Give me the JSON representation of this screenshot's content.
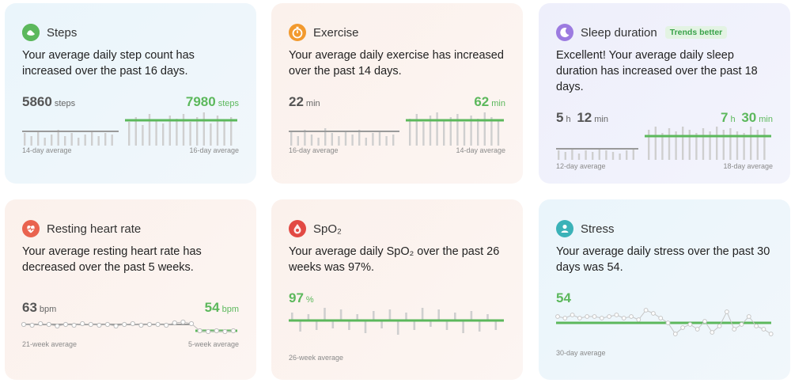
{
  "colors": {
    "green": "#5cb85c",
    "gray": "#8a8a8a",
    "steps_icon": "#5cb85c",
    "exercise_icon": "#f29a2e",
    "sleep_icon": "#9c7be0",
    "heart_icon": "#e9634f",
    "spo2_icon": "#e24a44",
    "stress_icon": "#3bb2b8"
  },
  "steps": {
    "icon": "steps-icon",
    "title": "Steps",
    "description": "Your average daily step count has increased over the past 16 days.",
    "left_value": "5860",
    "left_unit": "steps",
    "right_value": "7980",
    "right_unit": "steps",
    "left_caption": "14-day average",
    "right_caption": "16-day average"
  },
  "exercise": {
    "icon": "exercise-icon",
    "title": "Exercise",
    "description": "Your average daily exercise has increased over the past 14 days.",
    "left_value": "22",
    "left_unit": "min",
    "right_value": "62",
    "right_unit": "min",
    "left_caption": "16-day average",
    "right_caption": "14-day average"
  },
  "sleep": {
    "icon": "moon-icon",
    "title": "Sleep duration",
    "badge": "Trends better",
    "description": "Excellent!  Your average daily sleep duration has increased over the past 18 days.",
    "left_h": "5",
    "left_h_unit": "h",
    "left_m": "12",
    "left_m_unit": "min",
    "right_h": "7",
    "right_h_unit": "h",
    "right_m": "30",
    "right_m_unit": "min",
    "left_caption": "12-day average",
    "right_caption": "18-day average"
  },
  "heart": {
    "icon": "heart-icon",
    "title": "Resting heart rate",
    "description": "Your average resting heart rate has decreased over the past 5 weeks.",
    "left_value": "63",
    "left_unit": "bpm",
    "right_value": "54",
    "right_unit": "bpm",
    "left_caption": "21-week average",
    "right_caption": "5-week average"
  },
  "spo2": {
    "icon": "spo2-icon",
    "title": "SpO₂",
    "description": "Your average daily SpO₂ over the past 26 weeks was 97%.",
    "value": "97",
    "unit": "%",
    "caption": "26-week average"
  },
  "stress": {
    "icon": "stress-icon",
    "title": "Stress",
    "description": "Your average daily stress over the past 30 days was 54.",
    "value": "54",
    "caption": "30-day average"
  }
}
